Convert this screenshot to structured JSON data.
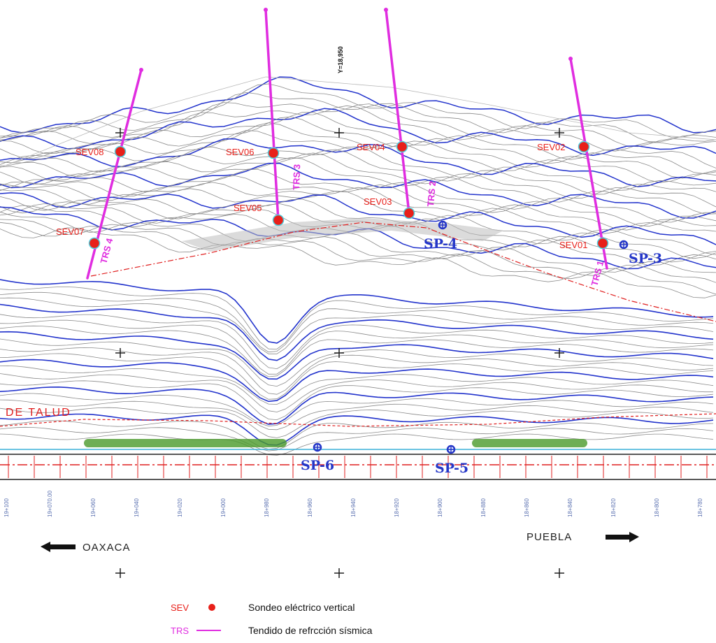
{
  "map": {
    "top_annotation": "Y=18,950",
    "talud_label": "DE TALUD",
    "directions": {
      "left": "OAXACA",
      "right": "PUEBLA"
    },
    "colors": {
      "sev": "#e8201a",
      "trs": "#e02de0",
      "sp": "#2436c8",
      "contour": "#8a8a8a",
      "contour_index": "#2233cc",
      "road": "#222222",
      "axis": "#e02020",
      "vegetation": "#4a9a2a"
    },
    "sev_points": [
      {
        "label": "SEV08"
      },
      {
        "label": "SEV07"
      },
      {
        "label": "SEV06"
      },
      {
        "label": "SEV05"
      },
      {
        "label": "SEV04"
      },
      {
        "label": "SEV03"
      },
      {
        "label": "SEV02"
      },
      {
        "label": "SEV01"
      }
    ],
    "trs_lines": [
      {
        "label": "TRS 4"
      },
      {
        "label": "TRS 3"
      },
      {
        "label": "TRS 2"
      },
      {
        "label": "TRS 1"
      }
    ],
    "sp_points": [
      {
        "label": "SP-4"
      },
      {
        "label": "SP-3"
      },
      {
        "label": "SP-6"
      },
      {
        "label": "SP-5"
      }
    ],
    "chainages": [
      "19+100",
      "19+070.00",
      "19+060",
      "19+040",
      "19+020",
      "19+000",
      "18+980",
      "18+960",
      "18+940",
      "18+920",
      "18+900",
      "18+880",
      "18+860",
      "18+840",
      "18+820",
      "18+800",
      "18+780"
    ]
  },
  "legend": {
    "sev_key": "SEV",
    "sev_text": "Sondeo eléctrico vertical",
    "trs_key": "TRS",
    "trs_text": "Tendido de refrcción sísmica"
  }
}
